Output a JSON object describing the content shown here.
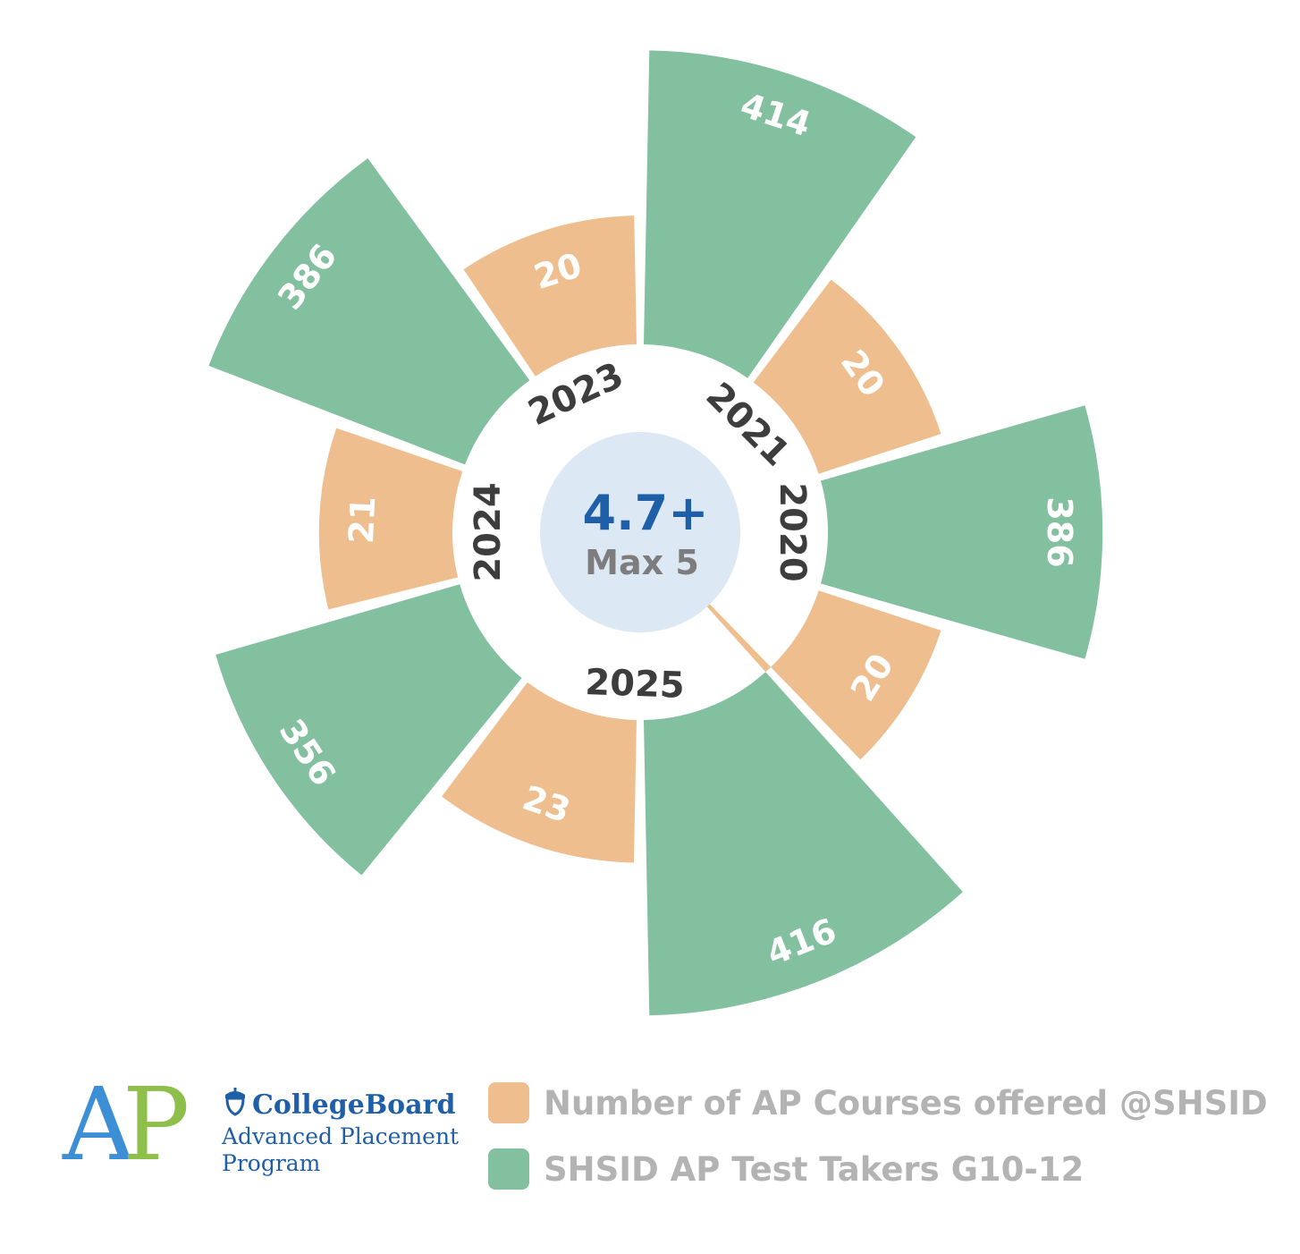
{
  "center": {
    "score": "4.7+",
    "max_label": "Max 5"
  },
  "colors": {
    "courses": "#efbe8f",
    "takers": "#82c0a0",
    "center_fill": "#dce8f4",
    "score_text": "#1f5fa8"
  },
  "chart_data": {
    "type": "radial-bar",
    "title": "",
    "categories": [
      "2020",
      "2021",
      "2023",
      "2024",
      "2025"
    ],
    "series": [
      {
        "name": "Number of AP Courses offered @SHSID",
        "values": [
          20,
          20,
          20,
          21,
          23
        ]
      },
      {
        "name": "SHSID AP Test Takers G10-12",
        "values": [
          386,
          414,
          386,
          356,
          416
        ]
      }
    ],
    "extra_courses_segment": {
      "value": 20
    },
    "legend_position": "bottom-right"
  },
  "legend": {
    "courses_label": "Number of AP Courses offered @SHSID",
    "takers_label": "SHSID AP Test Takers G10-12"
  },
  "logo": {
    "letters_a": "A",
    "letters_p": "P",
    "brand": "CollegeBoard",
    "line1": "Advanced Placement",
    "line2": "Program"
  }
}
